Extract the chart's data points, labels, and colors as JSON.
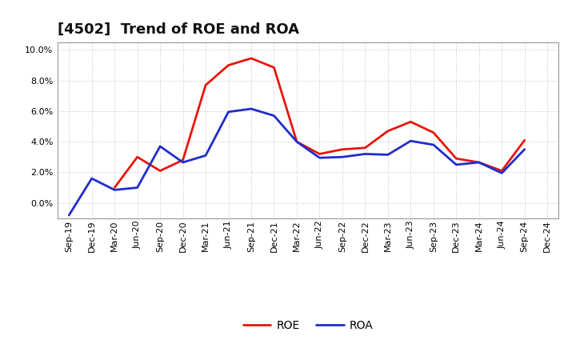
{
  "title": "[4502]  Trend of ROE and ROA",
  "x_labels": [
    "Sep-19",
    "Dec-19",
    "Mar-20",
    "Jun-20",
    "Sep-20",
    "Dec-20",
    "Mar-21",
    "Jun-21",
    "Sep-21",
    "Dec-21",
    "Mar-22",
    "Jun-22",
    "Sep-22",
    "Dec-22",
    "Mar-23",
    "Jun-23",
    "Sep-23",
    "Dec-23",
    "Mar-24",
    "Jun-24",
    "Sep-24",
    "Dec-24"
  ],
  "roe": [
    null,
    null,
    1.0,
    3.0,
    2.1,
    2.8,
    7.7,
    9.0,
    9.45,
    8.85,
    4.0,
    3.2,
    3.5,
    3.6,
    4.7,
    5.3,
    4.6,
    2.9,
    2.65,
    2.1,
    4.1,
    null
  ],
  "roa": [
    -0.8,
    1.6,
    0.85,
    1.0,
    3.7,
    2.65,
    3.1,
    5.95,
    6.15,
    5.7,
    4.0,
    2.95,
    3.0,
    3.2,
    3.15,
    4.05,
    3.8,
    2.5,
    2.65,
    1.95,
    3.5,
    null
  ],
  "roe_color": "#e8160c",
  "roa_color": "#1f2dcd",
  "ylim": [
    -1.0,
    10.5
  ],
  "yticks": [
    0.0,
    2.0,
    4.0,
    6.0,
    8.0,
    10.0
  ],
  "bg_color": "#ffffff",
  "plot_bg_color": "#ffffff",
  "grid_color": "#aaaaaa",
  "line_width": 2.0,
  "title_fontsize": 13,
  "tick_fontsize": 8.0,
  "legend_fontsize": 10
}
